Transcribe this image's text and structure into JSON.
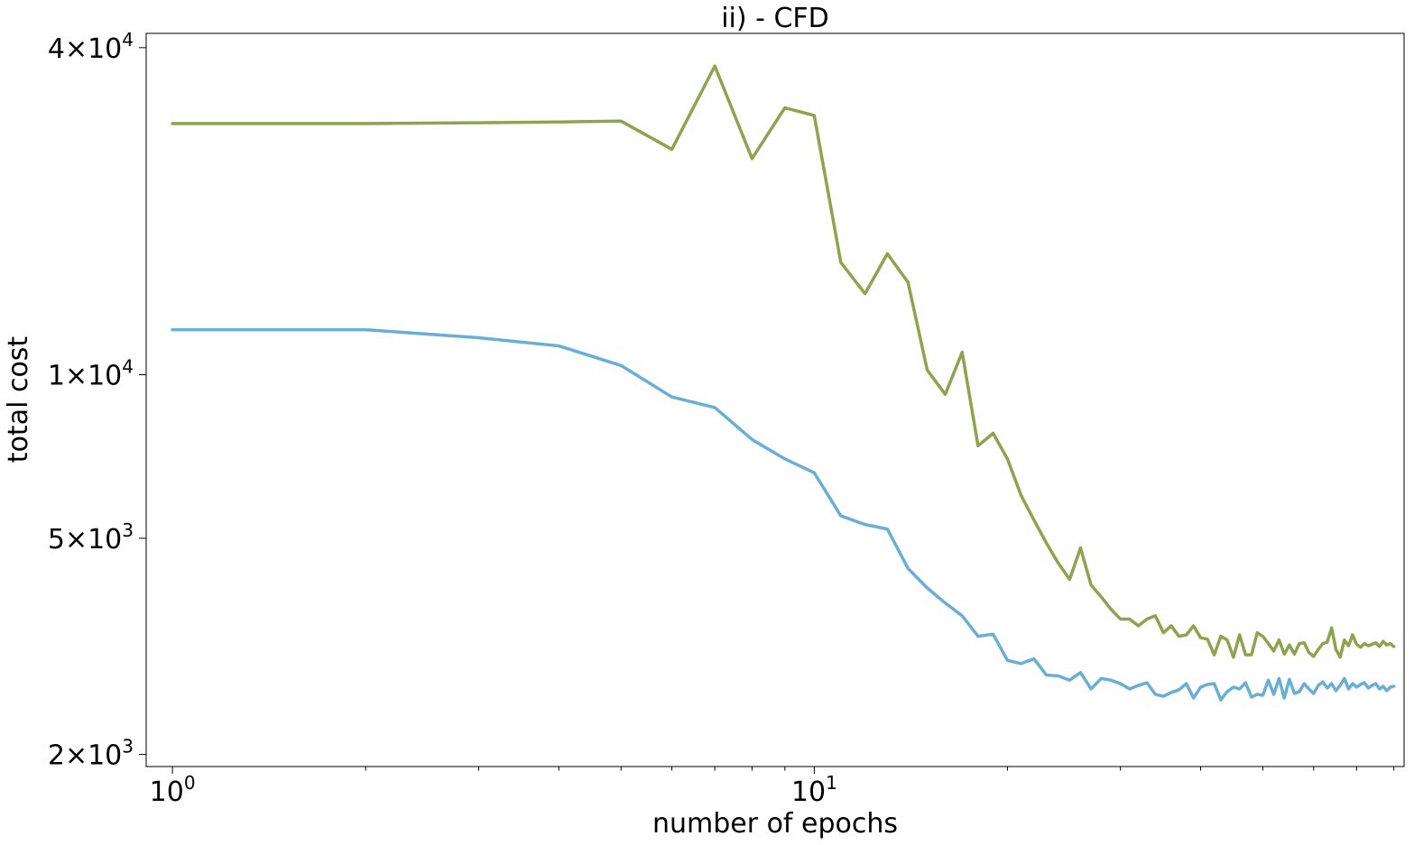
{
  "chart_data": {
    "type": "line",
    "title": "ii) - CFD",
    "xlabel": "number of epochs",
    "ylabel": "total cost",
    "x_scale": "log",
    "y_scale": "log",
    "xlim": [
      0.91,
      83
    ],
    "ylim": [
      1900,
      42500
    ],
    "x_ticks": [
      {
        "value": 1,
        "base": "10",
        "exp": "0"
      },
      {
        "value": 10,
        "base": "10",
        "exp": "1"
      }
    ],
    "y_ticks": [
      {
        "value": 40000,
        "mantissa": "4",
        "base": "10",
        "exp": "4"
      },
      {
        "value": 10000,
        "mantissa": "1",
        "base": "10",
        "exp": "4"
      },
      {
        "value": 5000,
        "mantissa": "5",
        "base": "10",
        "exp": "3"
      },
      {
        "value": 2000,
        "mantissa": "2",
        "base": "10",
        "exp": "3"
      }
    ],
    "grid": false,
    "series": [
      {
        "color": "#8da44f",
        "x": [
          1,
          2,
          3,
          4,
          5,
          6,
          7,
          8,
          9,
          10,
          11,
          12,
          13,
          14,
          15,
          16,
          17,
          18,
          19,
          20,
          21,
          22,
          23,
          24,
          25,
          26,
          27,
          28,
          29,
          30,
          31,
          32,
          33,
          34,
          35,
          36,
          37,
          38,
          39,
          40,
          41,
          42,
          43,
          44,
          45,
          46,
          47,
          48,
          49,
          50,
          51,
          52,
          53,
          54,
          55,
          56,
          57,
          58,
          59,
          60,
          61,
          62,
          63,
          64,
          65,
          66,
          67,
          68,
          69,
          70,
          71,
          72,
          73,
          74,
          75,
          76,
          77,
          78,
          79,
          80
        ],
        "y": [
          29000,
          29000,
          29100,
          29200,
          29300,
          26000,
          37000,
          25000,
          31000,
          30000,
          16100,
          14100,
          16700,
          14800,
          10200,
          9200,
          11000,
          7400,
          7800,
          7000,
          6000,
          5400,
          4900,
          4500,
          4200,
          4800,
          4100,
          3900,
          3700,
          3550,
          3550,
          3450,
          3550,
          3600,
          3350,
          3450,
          3300,
          3320,
          3450,
          3280,
          3260,
          3050,
          3300,
          3250,
          3020,
          3320,
          3050,
          3050,
          3350,
          3300,
          3200,
          3100,
          3250,
          3060,
          3180,
          3060,
          3200,
          3210,
          3080,
          3030,
          3120,
          3200,
          3220,
          3420,
          3120,
          3020,
          3250,
          3170,
          3320,
          3190,
          3150,
          3200,
          3170,
          3190,
          3210,
          3160,
          3230,
          3180,
          3200,
          3160
        ]
      },
      {
        "color": "#6aaed6",
        "x": [
          1,
          2,
          3,
          4,
          5,
          6,
          7,
          8,
          9,
          10,
          11,
          12,
          13,
          14,
          15,
          16,
          17,
          18,
          19,
          20,
          21,
          22,
          23,
          24,
          25,
          26,
          27,
          28,
          29,
          30,
          31,
          32,
          33,
          34,
          35,
          36,
          37,
          38,
          39,
          40,
          41,
          42,
          43,
          44,
          45,
          46,
          47,
          48,
          49,
          50,
          51,
          52,
          53,
          54,
          55,
          56,
          57,
          58,
          59,
          60,
          61,
          62,
          63,
          64,
          65,
          66,
          67,
          68,
          69,
          70,
          71,
          72,
          73,
          74,
          75,
          76,
          77,
          78,
          79,
          80
        ],
        "y": [
          12100,
          12100,
          11700,
          11300,
          10400,
          9100,
          8700,
          7600,
          7000,
          6600,
          5500,
          5300,
          5200,
          4400,
          4050,
          3800,
          3600,
          3300,
          3330,
          2980,
          2940,
          3000,
          2800,
          2790,
          2740,
          2830,
          2640,
          2760,
          2740,
          2700,
          2640,
          2680,
          2710,
          2580,
          2560,
          2600,
          2630,
          2700,
          2540,
          2660,
          2690,
          2700,
          2520,
          2610,
          2660,
          2640,
          2710,
          2550,
          2580,
          2570,
          2740,
          2580,
          2760,
          2540,
          2750,
          2590,
          2610,
          2700,
          2640,
          2590,
          2680,
          2720,
          2650,
          2700,
          2620,
          2680,
          2760,
          2640,
          2700,
          2660,
          2690,
          2710,
          2650,
          2680,
          2700,
          2640,
          2670,
          2620,
          2660,
          2670
        ]
      }
    ]
  }
}
